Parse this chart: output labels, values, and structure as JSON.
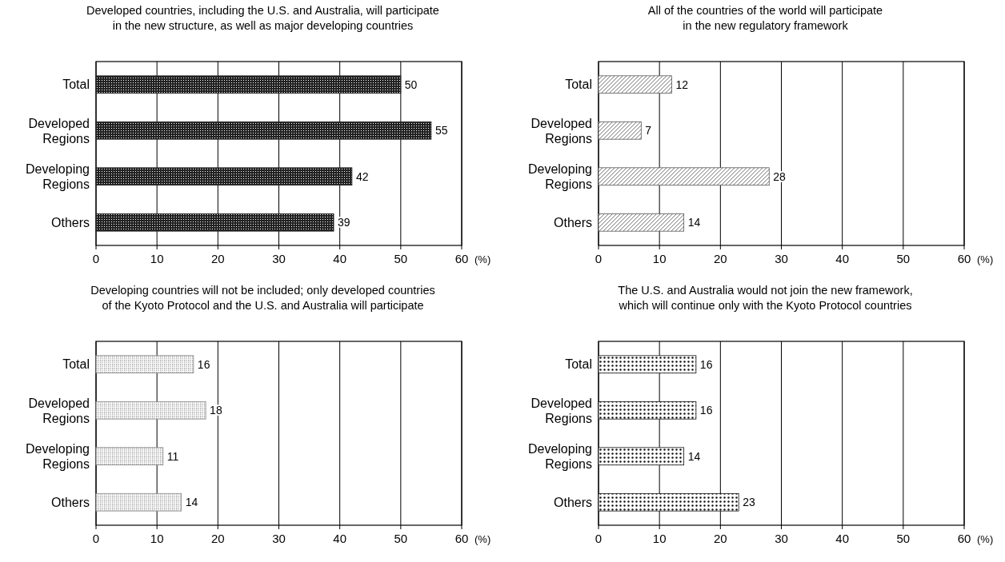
{
  "chart_data": [
    {
      "type": "bar",
      "orientation": "horizontal",
      "title": "Developed countries, including the U.S. and Australia, will participate\nin the new structure, as well as major developing countries",
      "xlabel": "(%)",
      "categories": [
        "Total",
        "Developed Regions",
        "Developing Regions",
        "Others"
      ],
      "values": [
        50,
        55,
        42,
        39
      ],
      "color": "#222222",
      "xlim": [
        0,
        60
      ],
      "xticks": [
        0,
        10,
        20,
        30,
        40,
        50,
        60
      ],
      "grid": "x",
      "data_labels": true
    },
    {
      "type": "bar",
      "orientation": "horizontal",
      "title": "All of the countries of the world will participate\nin the new regulatory framework",
      "xlabel": "(%)",
      "categories": [
        "Total",
        "Developed Regions",
        "Developing Regions",
        "Others"
      ],
      "values": [
        12,
        7,
        28,
        14
      ],
      "color": "#555555",
      "xlim": [
        0,
        60
      ],
      "xticks": [
        0,
        10,
        20,
        30,
        40,
        50,
        60
      ],
      "grid": "x",
      "data_labels": true
    },
    {
      "type": "bar",
      "orientation": "horizontal",
      "title": "Developing countries will not be included; only developed countries\nof the Kyoto Protocol and the U.S. and Australia will participate",
      "xlabel": "(%)",
      "categories": [
        "Total",
        "Developed Regions",
        "Developing Regions",
        "Others"
      ],
      "values": [
        16,
        18,
        11,
        14
      ],
      "color": "#888888",
      "xlim": [
        0,
        60
      ],
      "xticks": [
        0,
        10,
        20,
        30,
        40,
        50,
        60
      ],
      "grid": "x",
      "data_labels": true
    },
    {
      "type": "bar",
      "orientation": "horizontal",
      "title": "The U.S. and Australia would not join the new framework,\nwhich will continue only with the Kyoto Protocol countries",
      "xlabel": "(%)",
      "categories": [
        "Total",
        "Developed Regions",
        "Developing Regions",
        "Others"
      ],
      "values": [
        16,
        16,
        14,
        23
      ],
      "color": "#111111",
      "xlim": [
        0,
        60
      ],
      "xticks": [
        0,
        10,
        20,
        30,
        40,
        50,
        60
      ],
      "grid": "x",
      "data_labels": true
    }
  ]
}
